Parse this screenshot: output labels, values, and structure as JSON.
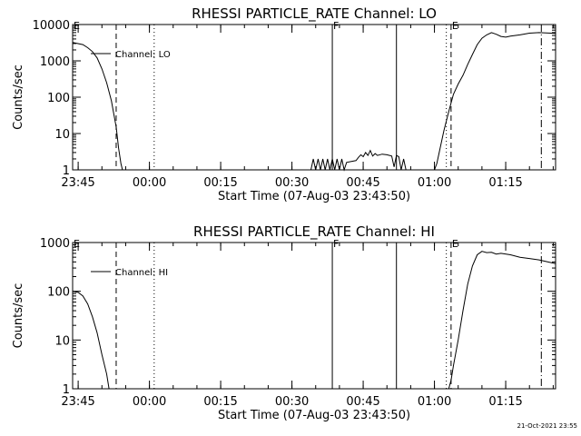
{
  "footer_timestamp": "21-Oct-2021 23:55",
  "chart_data": [
    {
      "type": "line",
      "title": "RHESSI PARTICLE_RATE Channel: LO",
      "xlabel": "Start Time (07-Aug-03 23:43:50)",
      "ylabel": "Counts/sec",
      "y_scale": "log",
      "ylim": [
        1,
        10000
      ],
      "xlim": [
        "23:43:50",
        "01:25:30"
      ],
      "grid": false,
      "legend": {
        "placement": "top-left",
        "label": "Channel: LO"
      },
      "x_ticks": [
        "23:45",
        "00:00",
        "00:15",
        "00:30",
        "00:45",
        "01:00",
        "01:15"
      ],
      "y_ticks": [
        "1",
        "10",
        "100",
        "1000",
        "10000"
      ],
      "markers": [
        {
          "time": "23:43:50",
          "label": "E",
          "style": "none"
        },
        {
          "time": "23:53:00",
          "label": "",
          "style": "dashed"
        },
        {
          "time": "00:01:00",
          "label": "",
          "style": "dotted"
        },
        {
          "time": "00:38:30",
          "label": "F",
          "style": "solid"
        },
        {
          "time": "00:52:00",
          "label": "",
          "style": "solid"
        },
        {
          "time": "01:02:30",
          "label": "",
          "style": "dotted"
        },
        {
          "time": "01:03:30",
          "label": "E",
          "style": "dashed"
        },
        {
          "time": "01:22:30",
          "label": "",
          "style": "dashdot"
        }
      ],
      "series": [
        {
          "name": "Channel: LO",
          "segments": [
            [
              [
                "23:43:50",
                3200
              ],
              [
                "23:46:00",
                2800
              ],
              [
                "23:47:00",
                2300
              ],
              [
                "23:48:00",
                1800
              ],
              [
                "23:49:00",
                1200
              ],
              [
                "23:50:00",
                600
              ],
              [
                "23:51:00",
                250
              ],
              [
                "23:52:00",
                80
              ],
              [
                "23:53:00",
                15
              ],
              [
                "23:53:30",
                4
              ],
              [
                "23:54:00",
                1.5
              ],
              [
                "23:54:20",
                1
              ]
            ],
            [
              [
                "00:34:00",
                1
              ],
              [
                "00:34:30",
                2
              ],
              [
                "00:35:00",
                1
              ],
              [
                "00:35:30",
                2
              ],
              [
                "00:36:00",
                1
              ],
              [
                "00:36:30",
                2
              ],
              [
                "00:37:00",
                1
              ],
              [
                "00:37:30",
                2
              ],
              [
                "00:38:00",
                1
              ],
              [
                "00:38:30",
                2
              ],
              [
                "00:39:00",
                1
              ],
              [
                "00:39:30",
                2
              ],
              [
                "00:40:00",
                1
              ],
              [
                "00:40:30",
                2
              ],
              [
                "00:41:00",
                1
              ],
              [
                "00:41:30",
                1.6
              ],
              [
                "00:42:30",
                1.7
              ],
              [
                "00:43:30",
                1.8
              ],
              [
                "00:44:00",
                2.2
              ],
              [
                "00:44:30",
                2.6
              ],
              [
                "00:45:00",
                2.3
              ],
              [
                "00:45:30",
                3
              ],
              [
                "00:46:00",
                2.5
              ],
              [
                "00:46:30",
                3.4
              ],
              [
                "00:47:00",
                2.4
              ],
              [
                "00:47:30",
                2.8
              ],
              [
                "00:48:00",
                2.5
              ],
              [
                "00:49:00",
                2.7
              ],
              [
                "00:50:00",
                2.6
              ],
              [
                "00:51:00",
                2.4
              ],
              [
                "00:51:30",
                1.2
              ],
              [
                "00:52:00",
                2.5
              ],
              [
                "00:52:30",
                2.3
              ],
              [
                "00:53:00",
                1
              ],
              [
                "00:53:30",
                2
              ],
              [
                "00:54:00",
                1
              ]
            ],
            [
              [
                "01:00:00",
                1
              ],
              [
                "01:00:30",
                1.5
              ],
              [
                "01:01:00",
                3
              ],
              [
                "01:02:00",
                12
              ],
              [
                "01:03:00",
                40
              ],
              [
                "01:04:00",
                120
              ],
              [
                "01:05:00",
                230
              ],
              [
                "01:06:00",
                400
              ],
              [
                "01:07:00",
                800
              ],
              [
                "01:08:00",
                1500
              ],
              [
                "01:09:00",
                2800
              ],
              [
                "01:10:00",
                4200
              ],
              [
                "01:11:00",
                5200
              ],
              [
                "01:12:00",
                6000
              ],
              [
                "01:13:00",
                5400
              ],
              [
                "01:14:00",
                4700
              ],
              [
                "01:15:00",
                4500
              ],
              [
                "01:16:00",
                4800
              ],
              [
                "01:18:00",
                5200
              ],
              [
                "01:20:00",
                5800
              ],
              [
                "01:22:00",
                6000
              ],
              [
                "01:25:30",
                5700
              ]
            ]
          ]
        }
      ]
    },
    {
      "type": "line",
      "title": "RHESSI PARTICLE_RATE Channel: HI",
      "xlabel": "Start Time (07-Aug-03 23:43:50)",
      "ylabel": "Counts/sec",
      "y_scale": "log",
      "ylim": [
        1,
        1000
      ],
      "xlim": [
        "23:43:50",
        "01:25:30"
      ],
      "grid": false,
      "legend": {
        "placement": "top-left",
        "label": "Channel: HI"
      },
      "x_ticks": [
        "23:45",
        "00:00",
        "00:15",
        "00:30",
        "00:45",
        "01:00",
        "01:15"
      ],
      "y_ticks": [
        "1",
        "10",
        "100",
        "1000"
      ],
      "markers": [
        {
          "time": "23:43:50",
          "label": "E",
          "style": "none"
        },
        {
          "time": "23:53:00",
          "label": "",
          "style": "dashed"
        },
        {
          "time": "00:01:00",
          "label": "",
          "style": "dotted"
        },
        {
          "time": "00:38:30",
          "label": "F",
          "style": "solid"
        },
        {
          "time": "00:52:00",
          "label": "",
          "style": "solid"
        },
        {
          "time": "01:02:30",
          "label": "",
          "style": "dotted"
        },
        {
          "time": "01:03:30",
          "label": "E",
          "style": "dashed"
        },
        {
          "time": "01:22:30",
          "label": "",
          "style": "dashdot"
        }
      ],
      "series": [
        {
          "name": "Channel: HI",
          "segments": [
            [
              [
                "23:43:50",
                100
              ],
              [
                "23:45:00",
                95
              ],
              [
                "23:46:00",
                80
              ],
              [
                "23:47:00",
                55
              ],
              [
                "23:48:00",
                30
              ],
              [
                "23:49:00",
                14
              ],
              [
                "23:50:00",
                5
              ],
              [
                "23:51:00",
                2
              ],
              [
                "23:51:30",
                1
              ]
            ],
            [
              [
                "01:03:00",
                1
              ],
              [
                "01:03:30",
                1.5
              ],
              [
                "01:04:00",
                3
              ],
              [
                "01:05:00",
                10
              ],
              [
                "01:06:00",
                40
              ],
              [
                "01:07:00",
                140
              ],
              [
                "01:08:00",
                330
              ],
              [
                "01:09:00",
                560
              ],
              [
                "01:10:00",
                660
              ],
              [
                "01:11:00",
                620
              ],
              [
                "01:12:00",
                630
              ],
              [
                "01:13:00",
                580
              ],
              [
                "01:14:00",
                600
              ],
              [
                "01:16:00",
                560
              ],
              [
                "01:18:00",
                500
              ],
              [
                "01:20:00",
                470
              ],
              [
                "01:22:00",
                440
              ],
              [
                "01:25:30",
                370
              ]
            ]
          ]
        }
      ]
    }
  ]
}
